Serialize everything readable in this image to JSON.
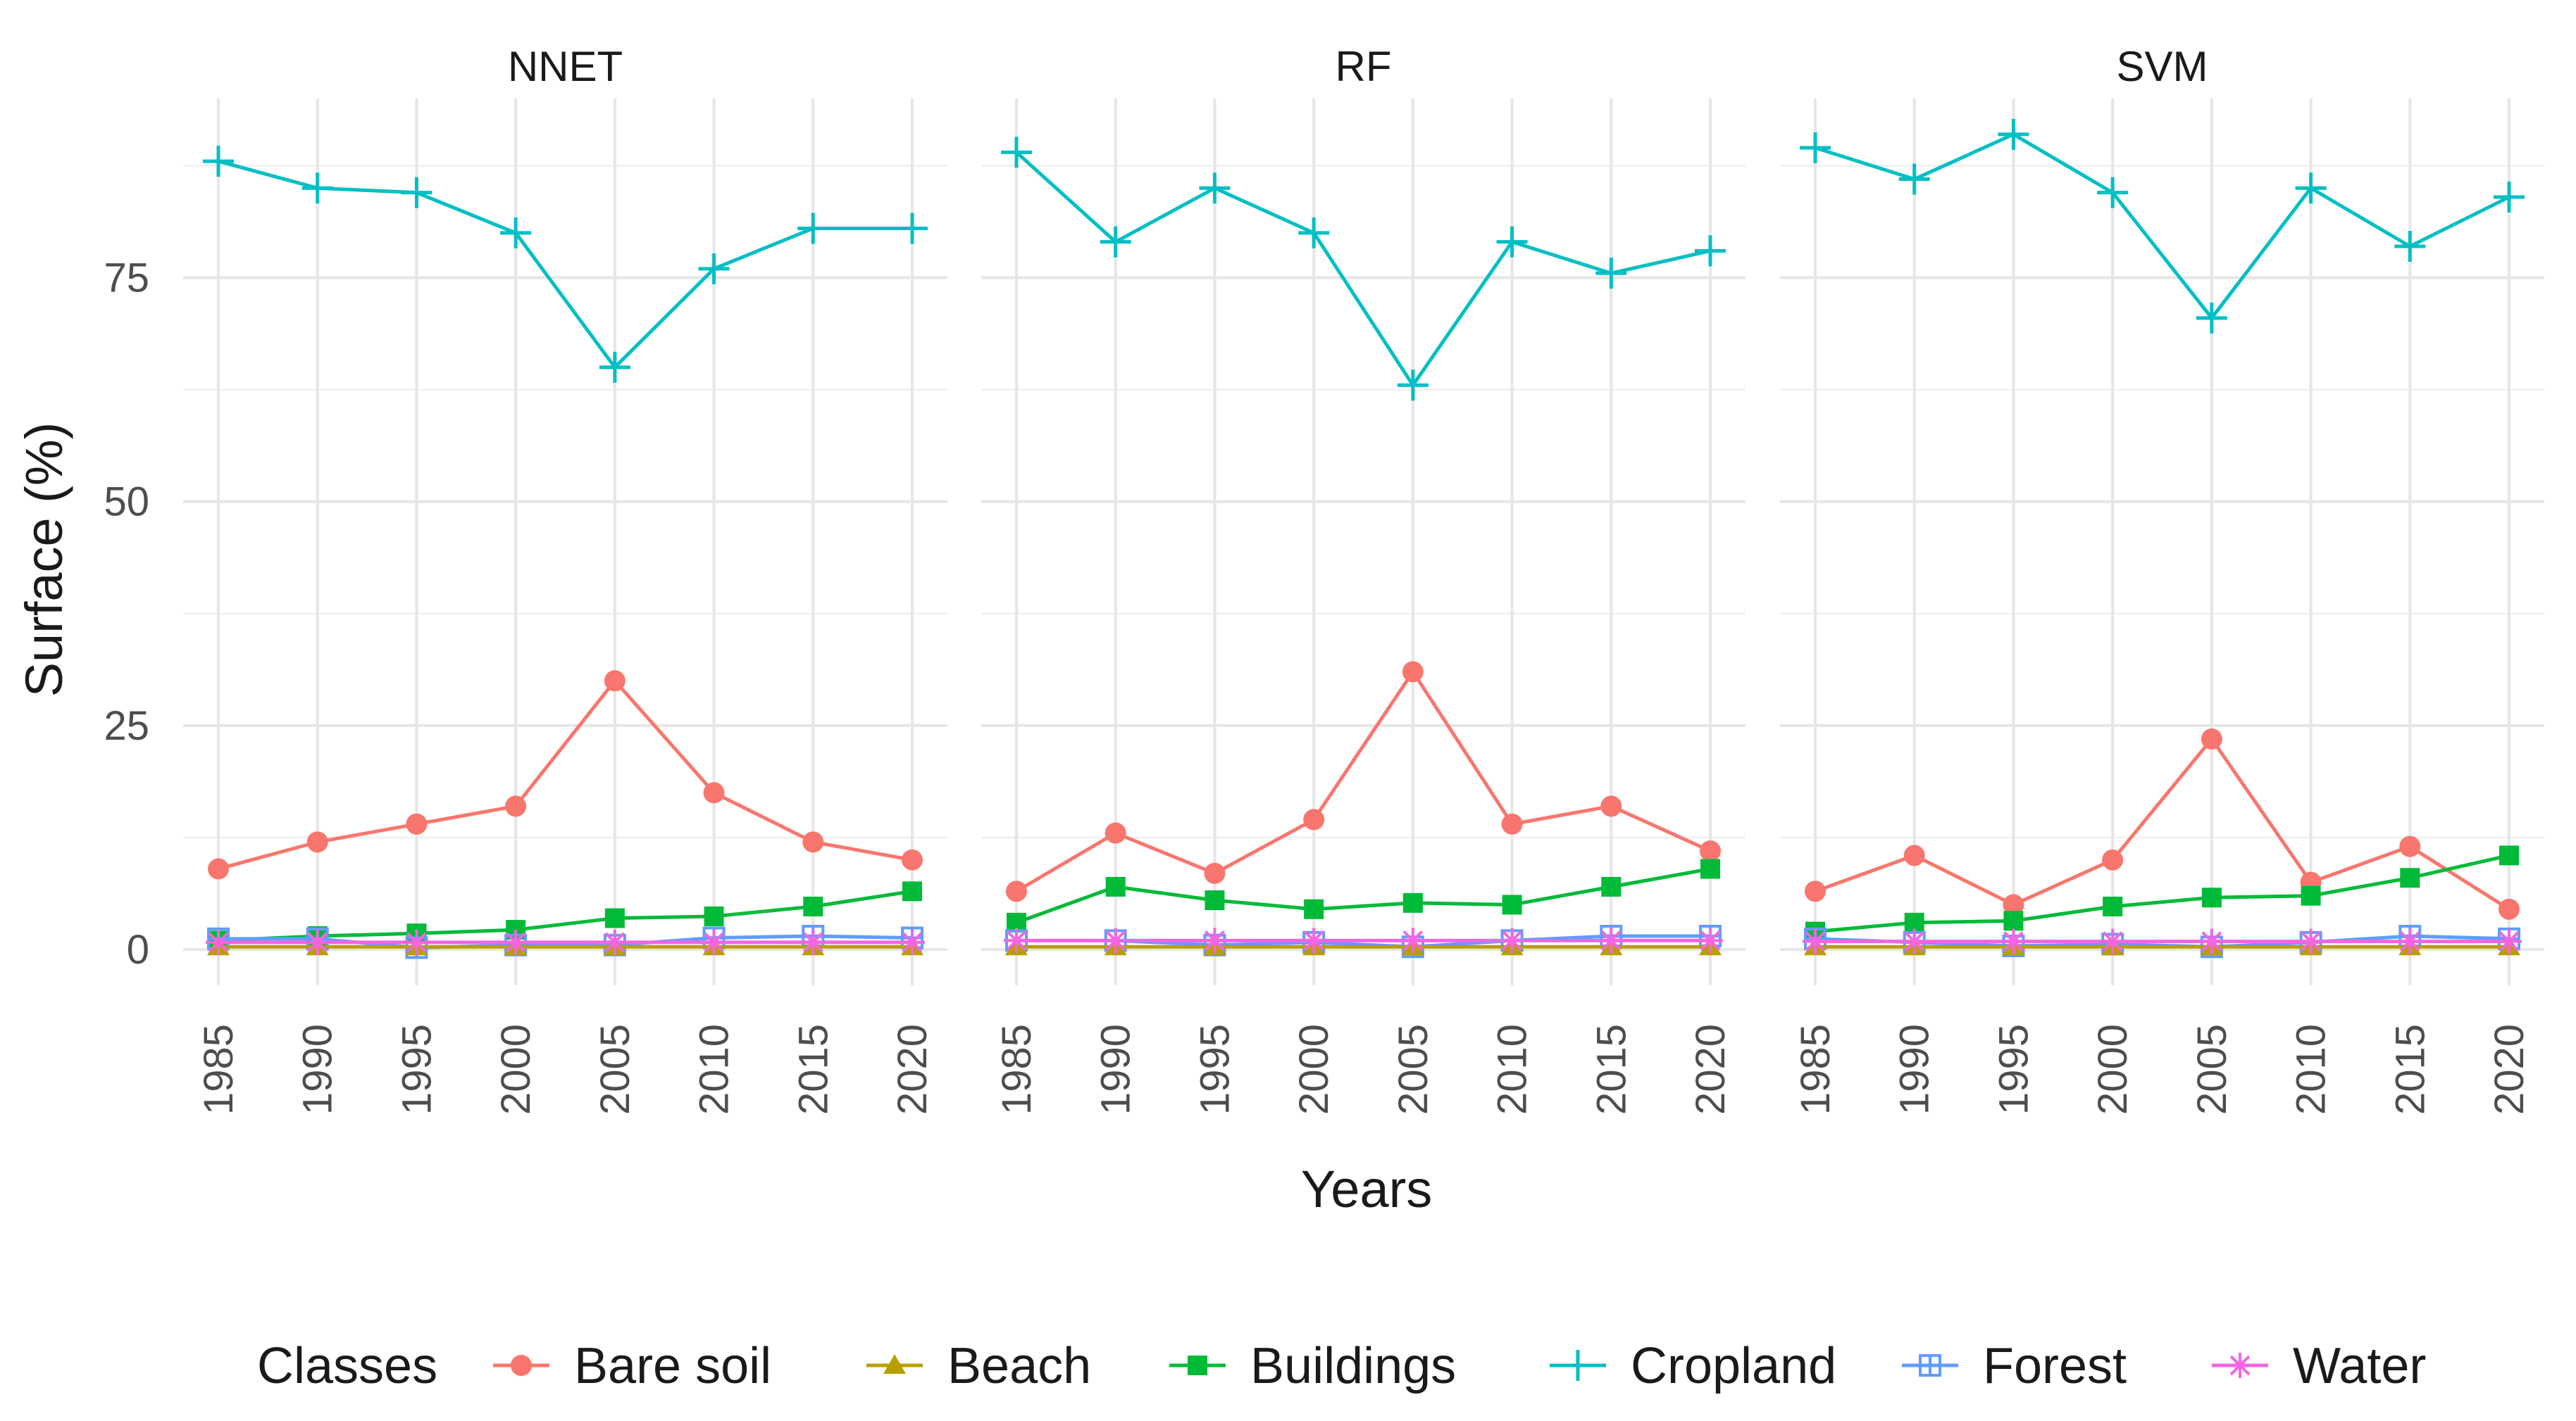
{
  "chart_data": {
    "type": "line",
    "xlabel": "Years",
    "ylabel": "Surface (%)",
    "ylim": [
      -4,
      95
    ],
    "yticks": [
      0,
      25,
      50,
      75
    ],
    "x": [
      "1985",
      "1990",
      "1995",
      "2000",
      "2005",
      "2010",
      "2015",
      "2020"
    ],
    "grid": true,
    "legend": {
      "title": "Classes",
      "position": "bottom",
      "entries": [
        "Bare soil",
        "Beach",
        "Buildings",
        "Cropland",
        "Forest",
        "Water"
      ]
    },
    "colors": {
      "Bare soil": "#F8766D",
      "Beach": "#B79F00",
      "Buildings": "#00BA38",
      "Cropland": "#00BFC4",
      "Forest": "#619CFF",
      "Water": "#F564E3"
    },
    "markers": {
      "Bare soil": "circle",
      "Beach": "triangle",
      "Buildings": "square",
      "Cropland": "plus",
      "Forest": "square-cross",
      "Water": "asterisk"
    },
    "panels": [
      {
        "title": "NNET",
        "series": [
          {
            "name": "Bare soil",
            "values": [
              9,
              12,
              14,
              16,
              30,
              17.5,
              12,
              10
            ]
          },
          {
            "name": "Beach",
            "values": [
              0.3,
              0.3,
              0.3,
              0.3,
              0.3,
              0.3,
              0.3,
              0.3
            ]
          },
          {
            "name": "Buildings",
            "values": [
              1,
              1.5,
              1.8,
              2.2,
              3.5,
              3.7,
              4.8,
              6.5
            ]
          },
          {
            "name": "Cropland",
            "values": [
              88,
              85,
              84.5,
              80,
              65,
              76,
              80.5,
              80.5
            ]
          },
          {
            "name": "Forest",
            "values": [
              1.2,
              1.2,
              0.2,
              0.5,
              0.5,
              1.3,
              1.5,
              1.3
            ]
          },
          {
            "name": "Water",
            "values": [
              0.8,
              0.8,
              0.8,
              0.8,
              0.8,
              0.8,
              0.8,
              0.8
            ]
          }
        ]
      },
      {
        "title": "RF",
        "series": [
          {
            "name": "Bare soil",
            "values": [
              6.5,
              13,
              8.5,
              14.5,
              31,
              14,
              16,
              11
            ]
          },
          {
            "name": "Beach",
            "values": [
              0.3,
              0.3,
              0.3,
              0.3,
              0.3,
              0.3,
              0.3,
              0.3
            ]
          },
          {
            "name": "Buildings",
            "values": [
              3,
              7,
              5.5,
              4.5,
              5.2,
              5,
              7,
              9
            ]
          },
          {
            "name": "Cropland",
            "values": [
              89,
              79,
              85,
              80,
              63,
              79,
              75.5,
              78
            ]
          },
          {
            "name": "Forest",
            "values": [
              1,
              1,
              0.5,
              0.8,
              0.3,
              1,
              1.5,
              1.5
            ]
          },
          {
            "name": "Water",
            "values": [
              1,
              1,
              1,
              1,
              1,
              1,
              1,
              1
            ]
          }
        ]
      },
      {
        "title": "SVM",
        "series": [
          {
            "name": "Bare soil",
            "values": [
              6.5,
              10.5,
              5,
              10,
              23.5,
              7.5,
              11.5,
              4.5
            ]
          },
          {
            "name": "Beach",
            "values": [
              0.3,
              0.3,
              0.3,
              0.3,
              0.3,
              0.3,
              0.3,
              0.3
            ]
          },
          {
            "name": "Buildings",
            "values": [
              2,
              3,
              3.2,
              4.8,
              5.8,
              6,
              8,
              10.5
            ]
          },
          {
            "name": "Cropland",
            "values": [
              89.5,
              86,
              91,
              84.5,
              70.5,
              85,
              78.5,
              84
            ]
          },
          {
            "name": "Forest",
            "values": [
              1.2,
              0.8,
              0.4,
              0.6,
              0.3,
              0.8,
              1.5,
              1.2
            ]
          },
          {
            "name": "Water",
            "values": [
              0.9,
              0.9,
              0.9,
              0.9,
              0.9,
              0.9,
              0.9,
              0.9
            ]
          }
        ]
      }
    ]
  }
}
